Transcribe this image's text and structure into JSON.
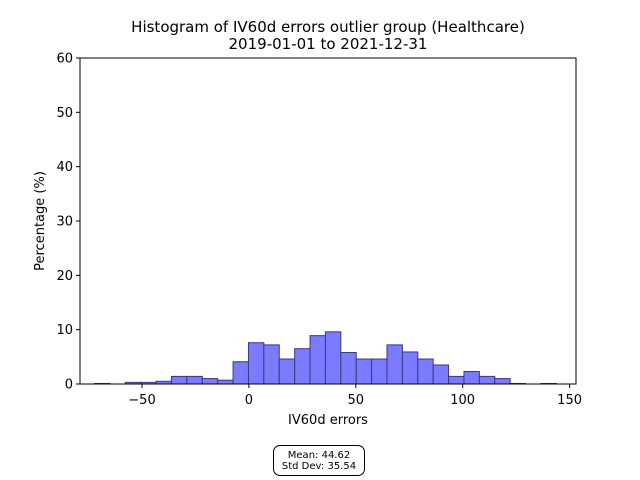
{
  "chart_data": {
    "type": "bar",
    "title": "Histogram of IV60d errors outlier group (Healthcare)",
    "subtitle": "2019-01-01 to 2021-12-31",
    "xlabel": "IV60d errors",
    "ylabel": "Percentage (%)",
    "xlim": [
      -79,
      153
    ],
    "ylim": [
      0,
      60
    ],
    "x_ticks": [
      -50,
      0,
      50,
      100,
      150
    ],
    "x_tick_labels": [
      "−50",
      "0",
      "50",
      "100",
      "150"
    ],
    "y_ticks": [
      0,
      10,
      20,
      30,
      40,
      50,
      60
    ],
    "y_tick_labels": [
      "0",
      "10",
      "20",
      "30",
      "40",
      "50",
      "60"
    ],
    "grid": false,
    "bar_color": "#7b7bff",
    "bar_edge_color": "#3a3a7a",
    "bins": [
      {
        "x0": -72.2,
        "x1": -65.0,
        "value": 0.1
      },
      {
        "x0": -65.0,
        "x1": -57.8,
        "value": 0.0
      },
      {
        "x0": -57.8,
        "x1": -50.6,
        "value": 0.3
      },
      {
        "x0": -50.6,
        "x1": -43.4,
        "value": 0.3
      },
      {
        "x0": -43.4,
        "x1": -36.2,
        "value": 0.5
      },
      {
        "x0": -36.2,
        "x1": -29.0,
        "value": 1.4
      },
      {
        "x0": -29.0,
        "x1": -21.8,
        "value": 1.4
      },
      {
        "x0": -21.8,
        "x1": -14.6,
        "value": 1.0
      },
      {
        "x0": -14.6,
        "x1": -7.4,
        "value": 0.7
      },
      {
        "x0": -7.4,
        "x1": -0.2,
        "value": 4.1
      },
      {
        "x0": -0.2,
        "x1": 7.0,
        "value": 7.6
      },
      {
        "x0": 7.0,
        "x1": 14.2,
        "value": 7.2
      },
      {
        "x0": 14.2,
        "x1": 21.4,
        "value": 4.6
      },
      {
        "x0": 21.4,
        "x1": 28.6,
        "value": 6.5
      },
      {
        "x0": 28.6,
        "x1": 35.8,
        "value": 8.9
      },
      {
        "x0": 35.8,
        "x1": 43.0,
        "value": 9.6
      },
      {
        "x0": 43.0,
        "x1": 50.2,
        "value": 5.8
      },
      {
        "x0": 50.2,
        "x1": 57.4,
        "value": 4.6
      },
      {
        "x0": 57.4,
        "x1": 64.6,
        "value": 4.6
      },
      {
        "x0": 64.6,
        "x1": 71.8,
        "value": 7.2
      },
      {
        "x0": 71.8,
        "x1": 79.0,
        "value": 5.9
      },
      {
        "x0": 79.0,
        "x1": 86.2,
        "value": 4.6
      },
      {
        "x0": 86.2,
        "x1": 93.4,
        "value": 3.5
      },
      {
        "x0": 93.4,
        "x1": 100.6,
        "value": 1.4
      },
      {
        "x0": 100.6,
        "x1": 107.8,
        "value": 2.3
      },
      {
        "x0": 107.8,
        "x1": 115.0,
        "value": 1.4
      },
      {
        "x0": 115.0,
        "x1": 122.2,
        "value": 1.0
      },
      {
        "x0": 122.2,
        "x1": 129.4,
        "value": 0.1
      },
      {
        "x0": 129.4,
        "x1": 136.6,
        "value": 0.0
      },
      {
        "x0": 136.6,
        "x1": 143.8,
        "value": 0.1
      }
    ],
    "annotation": {
      "mean_label": "Mean: 44.62",
      "std_label": "Std Dev: 35.54"
    }
  }
}
